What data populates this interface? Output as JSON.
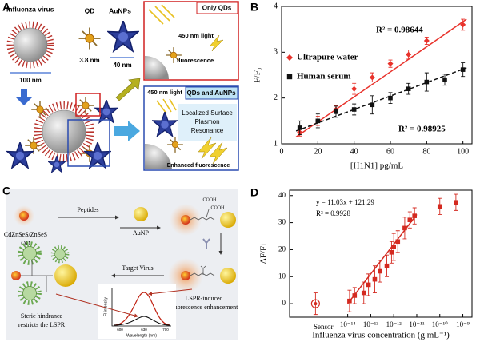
{
  "panel_labels": [
    "A",
    "B",
    "C",
    "D"
  ],
  "panel_a": {
    "influenza_virus": "Influenza virus",
    "qd": "QD",
    "aunps": "AuNPs",
    "qd_size": "3.8 nm",
    "aunp_size": "40 nm",
    "virus_size": "100 nm",
    "box1_title": "Only QDs",
    "box1_light": "450 nm light",
    "box1_result": "fluorescence",
    "box2_title": "QDs and AuNPs",
    "box2_light": "450 nm light",
    "box2_lspr": [
      "Localized Surface",
      "Plasmon",
      "Resonance"
    ],
    "box2_result": "Enhanced fluorescence"
  },
  "panel_c": {
    "qd": [
      "CdZnSeS/ZnSeS",
      "QD"
    ],
    "peptides": "Peptides",
    "aunp": "AuNP",
    "cooh": [
      "COOH",
      "COOH"
    ],
    "target_virus": "Target Virus",
    "lspr": [
      "LSPR-induced",
      "fluorescence enhancement"
    ],
    "steric": [
      "Steric hindrance",
      "restricts the LSPR"
    ],
    "inset_y": "Fl intensity",
    "inset_x": "Wavelength (nm)",
    "inset_ticks": [
      "600",
      "630",
      "700"
    ]
  },
  "chart_data": [
    {
      "type": "scatter",
      "xlabel": "[H1N1] pg/mL",
      "ylabel": "F/F₀",
      "xlim": [
        0,
        105
      ],
      "ylim": [
        1,
        4
      ],
      "xticks": [
        0,
        20,
        40,
        60,
        80,
        100
      ],
      "yticks": [
        1,
        2,
        3,
        4
      ],
      "grid": false,
      "legend": "upper left",
      "annotations": [
        "R² = 0.98644",
        "R² = 0.98925"
      ],
      "series": [
        {
          "name": "Ultrapure water",
          "color": "#e8322b",
          "marker": "diamond",
          "x": [
            10,
            20,
            30,
            40,
            50,
            60,
            70,
            80,
            100
          ],
          "values": [
            1.25,
            1.5,
            1.75,
            2.2,
            2.45,
            2.75,
            2.95,
            3.25,
            3.6
          ],
          "errors": [
            0.08,
            0.1,
            0.08,
            0.12,
            0.1,
            0.08,
            0.1,
            0.08,
            0.12
          ],
          "fit": {
            "x": [
              8,
              102
            ],
            "values": [
              1.15,
              3.72
            ],
            "style": "solid"
          }
        },
        {
          "name": "Human serum",
          "color": "#111111",
          "marker": "square",
          "x": [
            10,
            20,
            30,
            40,
            50,
            60,
            70,
            80,
            90,
            100
          ],
          "values": [
            1.35,
            1.5,
            1.7,
            1.75,
            1.85,
            2.0,
            2.2,
            2.35,
            2.4,
            2.62
          ],
          "errors": [
            0.15,
            0.15,
            0.12,
            0.12,
            0.2,
            0.12,
            0.12,
            0.2,
            0.12,
            0.15
          ],
          "fit": {
            "x": [
              8,
              102
            ],
            "values": [
              1.28,
              2.66
            ],
            "style": "dashed"
          }
        }
      ]
    },
    {
      "type": "scatter",
      "xlabel": "Influenza virus concentration (g mL⁻¹)",
      "ylabel": "ΔF/Fi",
      "xscale": "log",
      "xlim": [
        3e-17,
        2.5e-09
      ],
      "ylim": [
        -5,
        42
      ],
      "xticks": [
        {
          "value": 1e-14,
          "label": "10⁻¹⁴"
        },
        {
          "value": 1e-13,
          "label": "10⁻¹³"
        },
        {
          "value": 1e-12,
          "label": "10⁻¹²"
        },
        {
          "value": 1e-11,
          "label": "10⁻¹¹"
        },
        {
          "value": 1e-10,
          "label": "10⁻¹⁰"
        },
        {
          "value": 1e-09,
          "label": "10⁻⁹"
        }
      ],
      "yticks": [
        0,
        10,
        20,
        30,
        40
      ],
      "grid": false,
      "annotations": [
        "y = 11.03x + 121.29",
        "R² = 0.9928",
        "Sensor"
      ],
      "series": [
        {
          "color": "#d42a20",
          "marker": "square",
          "x": [
            1.2e-14,
            2e-14,
            5e-14,
            8e-14,
            1.5e-13,
            2.5e-13,
            5e-13,
            8e-13,
            1e-12,
            1.5e-12,
            3e-12,
            5e-12,
            8e-12,
            1e-10,
            5e-10
          ],
          "values": [
            1,
            3,
            4,
            7,
            9,
            12,
            14,
            19,
            21,
            23,
            28,
            31,
            32.5,
            36,
            37.5
          ],
          "errors": [
            4,
            3,
            4,
            4,
            5,
            4,
            4,
            4,
            5,
            4,
            4,
            3,
            3,
            3,
            3
          ],
          "fit": {
            "x": [
              1e-14,
              1e-11
            ],
            "values": [
              0,
              33
            ],
            "style": "solid"
          }
        },
        {
          "color": "#d42a20",
          "marker": "circle-open",
          "x": [
            4e-16
          ],
          "values": [
            0
          ],
          "errors": [
            4
          ]
        }
      ]
    }
  ]
}
